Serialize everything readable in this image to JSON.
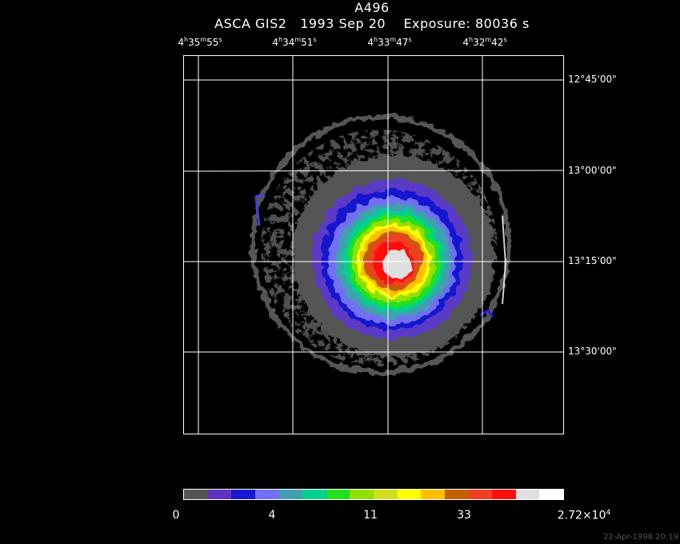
{
  "title": {
    "line1": "A496",
    "line2": "ASCA GIS2   1993 Sep 20    Exposure: 80036 s"
  },
  "ra_axis": [
    {
      "h": "4",
      "m": "35",
      "s": "55"
    },
    {
      "h": "4",
      "m": "34",
      "s": "51"
    },
    {
      "h": "4",
      "m": "33",
      "s": "47"
    },
    {
      "h": "4",
      "m": "32",
      "s": "42"
    }
  ],
  "dec_axis": [
    "12°45'00\"",
    "13°00'00\"",
    "13°15'00\"",
    "13°30'00\""
  ],
  "colorbar": {
    "colors": [
      "#555555",
      "#6030c0",
      "#1818d0",
      "#7070f0",
      "#40a0b0",
      "#00d090",
      "#20e020",
      "#90e000",
      "#d0e020",
      "#ffff00",
      "#ffc000",
      "#c06000",
      "#f04020",
      "#ff1010",
      "#e0e0e0",
      "#ffffff"
    ],
    "labels": {
      "l0": "0",
      "l1": "4",
      "l2": "11",
      "l3": "33",
      "max_base": "2.72×10",
      "max_exp": "4"
    }
  },
  "timestamp": "22-Apr-1998 20:19"
}
